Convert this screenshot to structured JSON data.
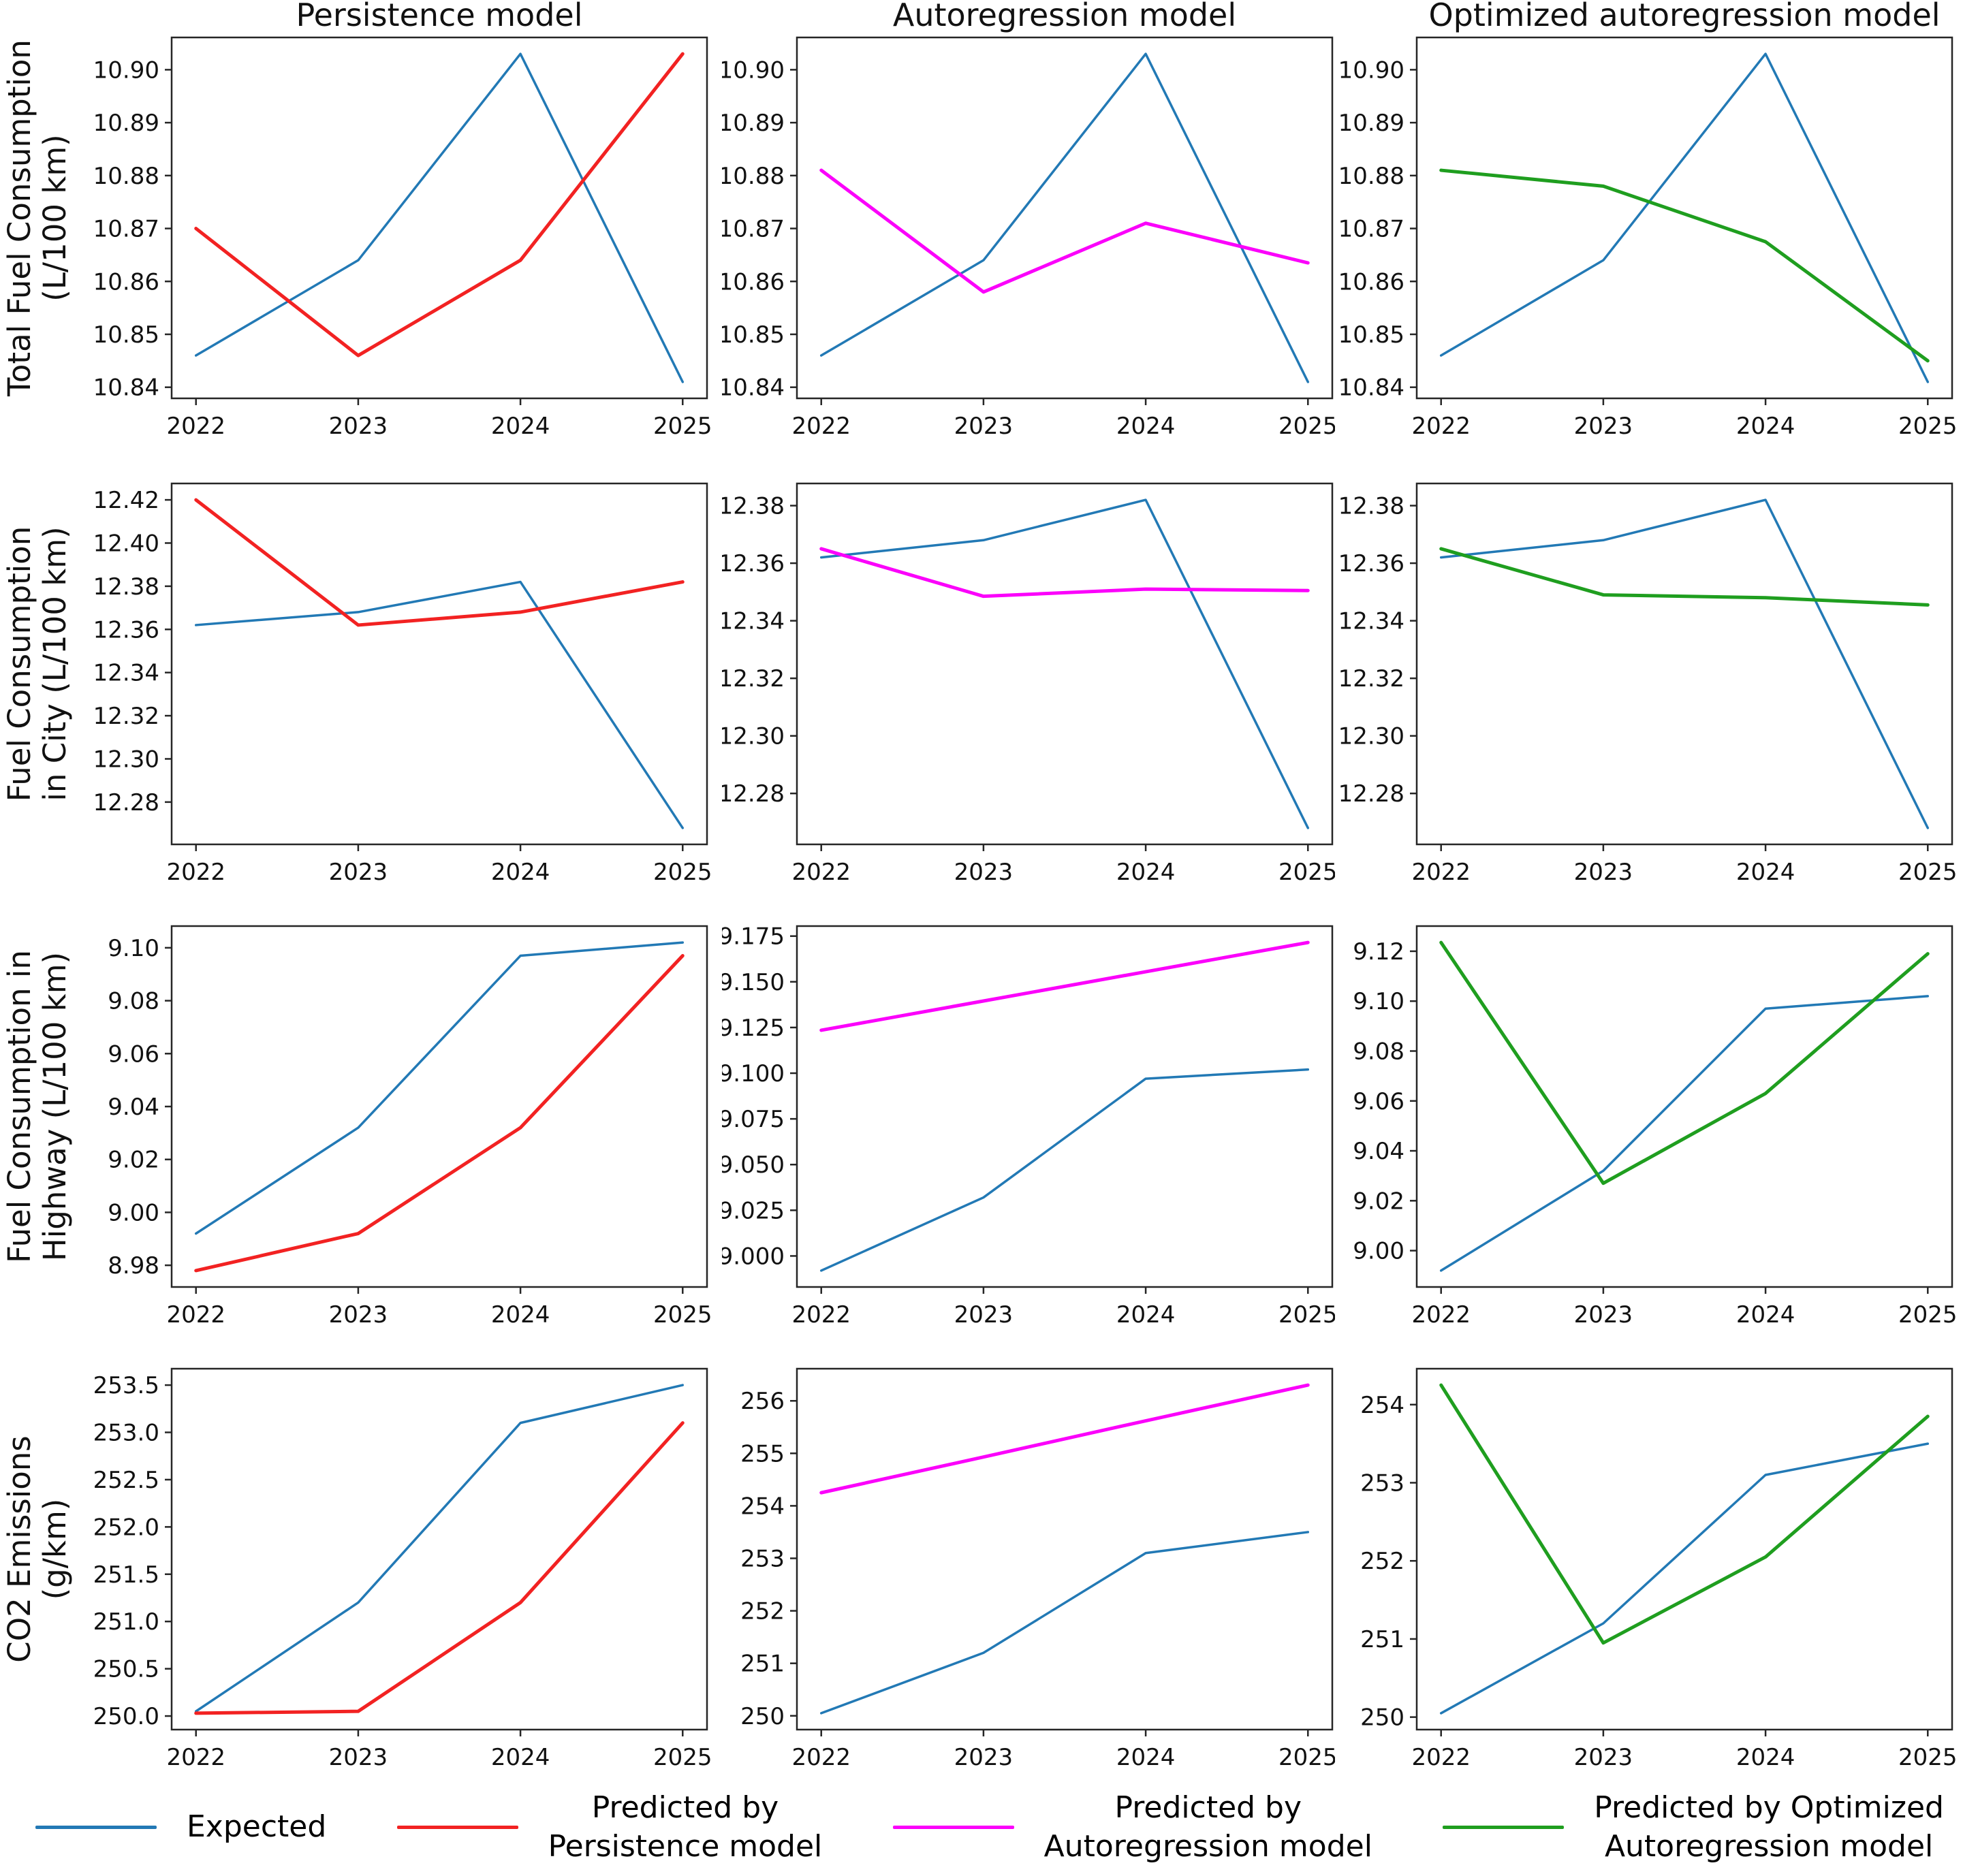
{
  "colors": {
    "expected": "#2279b5",
    "persistence": "#f22222",
    "autoregression": "#fb00fb",
    "optimized": "#1f9e1f",
    "axis": "#262626"
  },
  "legend": {
    "items": [
      {
        "line1": "Expected",
        "line2": "",
        "color": "expected"
      },
      {
        "line1": "Predicted by",
        "line2": "Persistence model",
        "color": "persistence"
      },
      {
        "line1": "Predicted by",
        "line2": "Autoregression model",
        "color": "autoregression"
      },
      {
        "line1": "Predicted by Optimized",
        "line2": "Autoregression model",
        "color": "optimized"
      }
    ]
  },
  "chart_data": [
    {
      "type": "line",
      "title": "Persistence model",
      "ylabel_lines": [
        "Total Fuel Consumption",
        "(L/100 km)"
      ],
      "x": [
        2022,
        2023,
        2024,
        2025
      ],
      "xtick_labels": [
        "2022",
        "2023",
        "2024",
        "2025"
      ],
      "xlim": [
        2021.85,
        2025.15
      ],
      "ylim": [
        10.8379,
        10.9061
      ],
      "yticks": [
        10.84,
        10.85,
        10.86,
        10.87,
        10.88,
        10.89,
        10.9
      ],
      "ytick_labels": [
        "10.84",
        "10.85",
        "10.86",
        "10.87",
        "10.88",
        "10.89",
        "10.90"
      ],
      "series": [
        {
          "name": "Expected",
          "color": "expected",
          "values": [
            10.846,
            10.864,
            10.903,
            10.841
          ]
        },
        {
          "name": "Predicted by Persistence model",
          "color": "persistence",
          "values": [
            10.87,
            10.846,
            10.864,
            10.903
          ]
        }
      ]
    },
    {
      "type": "line",
      "title": "Autoregression model",
      "ylabel_lines": [],
      "x": [
        2022,
        2023,
        2024,
        2025
      ],
      "xtick_labels": [
        "2022",
        "2023",
        "2024",
        "2025"
      ],
      "xlim": [
        2021.85,
        2025.15
      ],
      "ylim": [
        10.8379,
        10.9061
      ],
      "yticks": [
        10.84,
        10.85,
        10.86,
        10.87,
        10.88,
        10.89,
        10.9
      ],
      "ytick_labels": [
        "10.84",
        "10.85",
        "10.86",
        "10.87",
        "10.88",
        "10.89",
        "10.90"
      ],
      "series": [
        {
          "name": "Expected",
          "color": "expected",
          "values": [
            10.846,
            10.864,
            10.903,
            10.841
          ]
        },
        {
          "name": "Predicted by Autoregression model",
          "color": "autoregression",
          "values": [
            10.881,
            10.858,
            10.871,
            10.8635
          ]
        }
      ]
    },
    {
      "type": "line",
      "title": "Optimized autoregression model",
      "ylabel_lines": [],
      "x": [
        2022,
        2023,
        2024,
        2025
      ],
      "xtick_labels": [
        "2022",
        "2023",
        "2024",
        "2025"
      ],
      "xlim": [
        2021.85,
        2025.15
      ],
      "ylim": [
        10.8379,
        10.9061
      ],
      "yticks": [
        10.84,
        10.85,
        10.86,
        10.87,
        10.88,
        10.89,
        10.9
      ],
      "ytick_labels": [
        "10.84",
        "10.85",
        "10.86",
        "10.87",
        "10.88",
        "10.89",
        "10.90"
      ],
      "series": [
        {
          "name": "Expected",
          "color": "expected",
          "values": [
            10.846,
            10.864,
            10.903,
            10.841
          ]
        },
        {
          "name": "Predicted by Optimized Autoregression model",
          "color": "optimized",
          "values": [
            10.881,
            10.878,
            10.8675,
            10.845
          ]
        }
      ]
    },
    {
      "type": "line",
      "title": "",
      "ylabel_lines": [
        "Fuel Consumption",
        "in City (L/100 km)"
      ],
      "x": [
        2022,
        2023,
        2024,
        2025
      ],
      "xtick_labels": [
        "2022",
        "2023",
        "2024",
        "2025"
      ],
      "xlim": [
        2021.85,
        2025.15
      ],
      "ylim": [
        12.2604,
        12.4276
      ],
      "yticks": [
        12.28,
        12.3,
        12.32,
        12.34,
        12.36,
        12.38,
        12.4,
        12.42
      ],
      "ytick_labels": [
        "12.28",
        "12.30",
        "12.32",
        "12.34",
        "12.36",
        "12.38",
        "12.40",
        "12.42"
      ],
      "series": [
        {
          "name": "Expected",
          "color": "expected",
          "values": [
            12.362,
            12.368,
            12.382,
            12.268
          ]
        },
        {
          "name": "Predicted by Persistence model",
          "color": "persistence",
          "values": [
            12.42,
            12.362,
            12.368,
            12.382
          ]
        }
      ]
    },
    {
      "type": "line",
      "title": "",
      "ylabel_lines": [],
      "x": [
        2022,
        2023,
        2024,
        2025
      ],
      "xtick_labels": [
        "2022",
        "2023",
        "2024",
        "2025"
      ],
      "xlim": [
        2021.85,
        2025.15
      ],
      "ylim": [
        12.2623,
        12.3877
      ],
      "yticks": [
        12.28,
        12.3,
        12.32,
        12.34,
        12.36,
        12.38
      ],
      "ytick_labels": [
        "12.28",
        "12.30",
        "12.32",
        "12.34",
        "12.36",
        "12.38"
      ],
      "series": [
        {
          "name": "Expected",
          "color": "expected",
          "values": [
            12.362,
            12.368,
            12.382,
            12.268
          ]
        },
        {
          "name": "Predicted by Autoregression model",
          "color": "autoregression",
          "values": [
            12.365,
            12.3485,
            12.351,
            12.3505
          ]
        }
      ]
    },
    {
      "type": "line",
      "title": "",
      "ylabel_lines": [],
      "x": [
        2022,
        2023,
        2024,
        2025
      ],
      "xtick_labels": [
        "2022",
        "2023",
        "2024",
        "2025"
      ],
      "xlim": [
        2021.85,
        2025.15
      ],
      "ylim": [
        12.2623,
        12.3877
      ],
      "yticks": [
        12.28,
        12.3,
        12.32,
        12.34,
        12.36,
        12.38
      ],
      "ytick_labels": [
        "12.28",
        "12.30",
        "12.32",
        "12.34",
        "12.36",
        "12.38"
      ],
      "series": [
        {
          "name": "Expected",
          "color": "expected",
          "values": [
            12.362,
            12.368,
            12.382,
            12.268
          ]
        },
        {
          "name": "Predicted by Optimized Autoregression model",
          "color": "optimized",
          "values": [
            12.365,
            12.349,
            12.348,
            12.3455
          ]
        }
      ]
    },
    {
      "type": "line",
      "title": "",
      "ylabel_lines": [
        "Fuel Consumption in",
        "Highway (L/100 km)"
      ],
      "x": [
        2022,
        2023,
        2024,
        2025
      ],
      "xtick_labels": [
        "2022",
        "2023",
        "2024",
        "2025"
      ],
      "xlim": [
        2021.85,
        2025.15
      ],
      "ylim": [
        8.9718,
        9.1082
      ],
      "yticks": [
        8.98,
        9.0,
        9.02,
        9.04,
        9.06,
        9.08,
        9.1
      ],
      "ytick_labels": [
        "8.98",
        "9.00",
        "9.02",
        "9.04",
        "9.06",
        "9.08",
        "9.10"
      ],
      "series": [
        {
          "name": "Expected",
          "color": "expected",
          "values": [
            8.992,
            9.032,
            9.097,
            9.102
          ]
        },
        {
          "name": "Predicted by Persistence model",
          "color": "persistence",
          "values": [
            8.978,
            8.992,
            9.032,
            9.097
          ]
        }
      ]
    },
    {
      "type": "line",
      "title": "",
      "ylabel_lines": [],
      "x": [
        2022,
        2023,
        2024,
        2025
      ],
      "xtick_labels": [
        "2022",
        "2023",
        "2024",
        "2025"
      ],
      "xlim": [
        2021.85,
        2025.15
      ],
      "ylim": [
        8.98303,
        9.18048
      ],
      "yticks": [
        9.0,
        9.025,
        9.05,
        9.075,
        9.1,
        9.125,
        9.15,
        9.175
      ],
      "ytick_labels": [
        "9.000",
        "9.025",
        "9.050",
        "9.075",
        "9.100",
        "9.125",
        "9.150",
        "9.175"
      ],
      "series": [
        {
          "name": "Expected",
          "color": "expected",
          "values": [
            8.992,
            9.032,
            9.097,
            9.102
          ]
        },
        {
          "name": "Predicted by Autoregression model",
          "color": "autoregression",
          "values": [
            9.1235,
            9.1395,
            9.1555,
            9.1715
          ]
        }
      ]
    },
    {
      "type": "line",
      "title": "",
      "ylabel_lines": [],
      "x": [
        2022,
        2023,
        2024,
        2025
      ],
      "xtick_labels": [
        "2022",
        "2023",
        "2024",
        "2025"
      ],
      "xlim": [
        2021.85,
        2025.15
      ],
      "ylim": [
        8.98543,
        9.13008
      ],
      "yticks": [
        9.0,
        9.02,
        9.04,
        9.06,
        9.08,
        9.1,
        9.12
      ],
      "ytick_labels": [
        "9.00",
        "9.02",
        "9.04",
        "9.06",
        "9.08",
        "9.10",
        "9.12"
      ],
      "series": [
        {
          "name": "Expected",
          "color": "expected",
          "values": [
            8.992,
            9.032,
            9.097,
            9.102
          ]
        },
        {
          "name": "Predicted by Optimized Autoregression model",
          "color": "optimized",
          "values": [
            9.1235,
            9.027,
            9.063,
            9.119
          ]
        }
      ]
    },
    {
      "type": "line",
      "title": "",
      "ylabel_lines": [
        "CO2 Emissions",
        "(g/km)"
      ],
      "x": [
        2022,
        2023,
        2024,
        2025
      ],
      "xtick_labels": [
        "2022",
        "2023",
        "2024",
        "2025"
      ],
      "xlim": [
        2021.85,
        2025.15
      ],
      "ylim": [
        249.8565,
        253.6735
      ],
      "yticks": [
        250.0,
        250.5,
        251.0,
        251.5,
        252.0,
        252.5,
        253.0,
        253.5
      ],
      "ytick_labels": [
        "250.0",
        "250.5",
        "251.0",
        "251.5",
        "252.0",
        "252.5",
        "253.0",
        "253.5"
      ],
      "series": [
        {
          "name": "Expected",
          "color": "expected",
          "values": [
            250.05,
            251.2,
            253.1,
            253.5
          ]
        },
        {
          "name": "Predicted by Persistence model",
          "color": "persistence",
          "values": [
            250.03,
            250.05,
            251.2,
            253.1
          ]
        }
      ]
    },
    {
      "type": "line",
      "title": "",
      "ylabel_lines": [],
      "x": [
        2022,
        2023,
        2024,
        2025
      ],
      "xtick_labels": [
        "2022",
        "2023",
        "2024",
        "2025"
      ],
      "xlim": [
        2021.85,
        2025.15
      ],
      "ylim": [
        249.7375,
        256.6125
      ],
      "yticks": [
        250,
        251,
        252,
        253,
        254,
        255,
        256
      ],
      "ytick_labels": [
        "250",
        "251",
        "252",
        "253",
        "254",
        "255",
        "256"
      ],
      "series": [
        {
          "name": "Expected",
          "color": "expected",
          "values": [
            250.05,
            251.2,
            253.1,
            253.5
          ]
        },
        {
          "name": "Predicted by Autoregression model",
          "color": "autoregression",
          "values": [
            254.25,
            254.93,
            255.62,
            256.3
          ]
        }
      ]
    },
    {
      "type": "line",
      "title": "",
      "ylabel_lines": [],
      "x": [
        2022,
        2023,
        2024,
        2025
      ],
      "xtick_labels": [
        "2022",
        "2023",
        "2024",
        "2025"
      ],
      "xlim": [
        2021.85,
        2025.15
      ],
      "ylim": [
        249.84,
        254.46
      ],
      "yticks": [
        250,
        251,
        252,
        253,
        254
      ],
      "ytick_labels": [
        "250",
        "251",
        "252",
        "253",
        "254"
      ],
      "series": [
        {
          "name": "Expected",
          "color": "expected",
          "values": [
            250.05,
            251.2,
            253.1,
            253.5
          ]
        },
        {
          "name": "Predicted by Optimized Autoregression model",
          "color": "optimized",
          "values": [
            254.25,
            250.95,
            252.05,
            253.85
          ]
        }
      ]
    }
  ]
}
